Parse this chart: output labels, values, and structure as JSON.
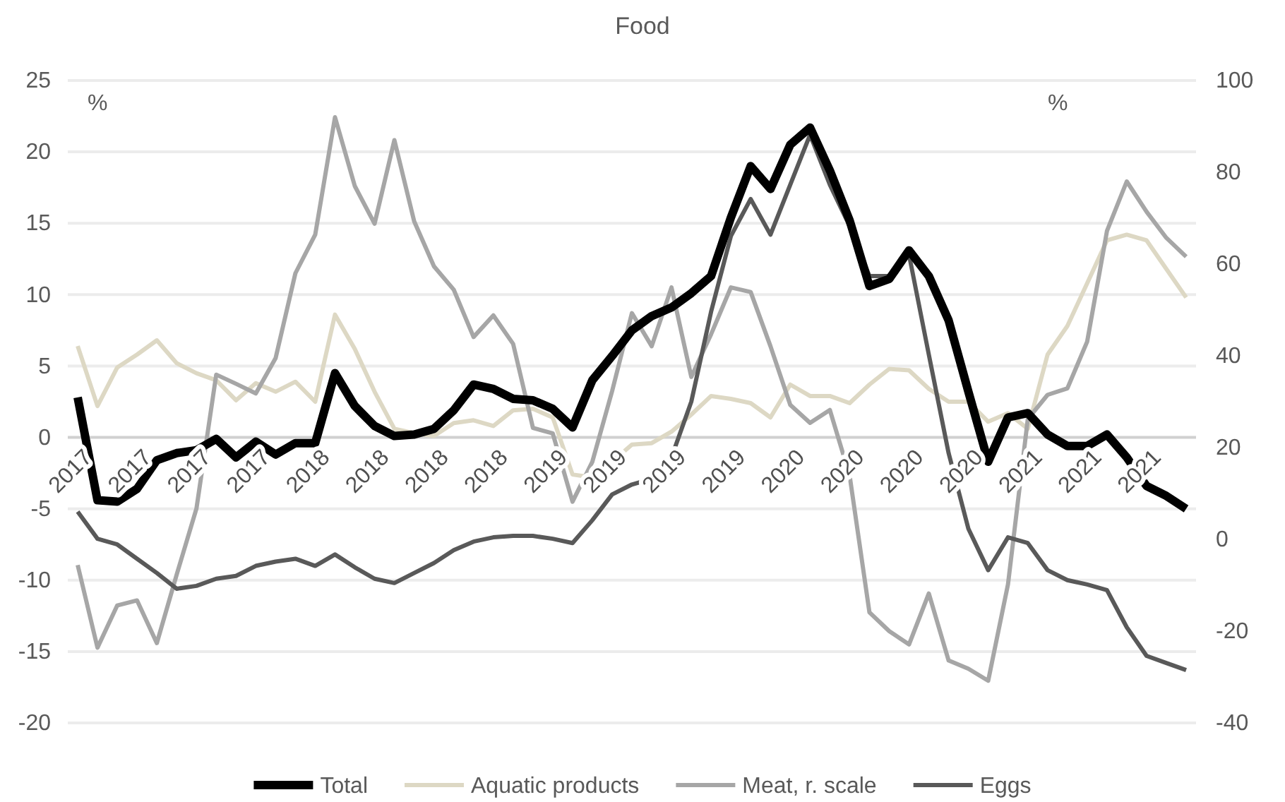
{
  "chart_data": {
    "type": "line",
    "title": "Food",
    "ylabel": "%",
    "y2label": "%",
    "categories": [
      "2017",
      null,
      null,
      "2017",
      null,
      null,
      "2017",
      null,
      null,
      "2017",
      null,
      null,
      "2018",
      null,
      null,
      "2018",
      null,
      null,
      "2018",
      null,
      null,
      "2018",
      null,
      null,
      "2019",
      null,
      null,
      "2019",
      null,
      null,
      "2019",
      null,
      null,
      "2019",
      null,
      null,
      "2020",
      null,
      null,
      "2020",
      null,
      null,
      "2020",
      null,
      null,
      "2020",
      null,
      null,
      "2021",
      null,
      null,
      "2021",
      null,
      null,
      "2021",
      null,
      null
    ],
    "series": [
      {
        "name": "Total",
        "color": "#000000",
        "values": [
          2.8,
          -4.4,
          -4.5,
          -3.6,
          -1.6,
          -1.1,
          -0.9,
          -0.1,
          -1.4,
          -0.3,
          -1.2,
          -0.4,
          -0.4,
          4.5,
          2.2,
          0.8,
          0.1,
          0.2,
          0.6,
          1.9,
          3.7,
          3.4,
          2.7,
          2.6,
          2.0,
          0.7,
          4.0,
          5.7,
          7.5,
          8.5,
          9.1,
          10.1,
          11.3,
          15.4,
          19.0,
          17.4,
          20.5,
          21.7,
          18.7,
          15.2,
          10.6,
          11.1,
          13.1,
          11.3,
          8.2,
          3.2,
          -1.7,
          1.4,
          1.7,
          0.2,
          -0.6,
          -0.6,
          0.2,
          -1.4,
          -3.4,
          -4.1,
          -5.0
        ]
      },
      {
        "name": "Aquatic products",
        "color": "#ddd8c4",
        "values": [
          6.4,
          2.2,
          4.9,
          5.8,
          6.8,
          5.2,
          4.5,
          4.0,
          2.6,
          3.8,
          3.2,
          3.9,
          2.5,
          8.6,
          6.2,
          3.2,
          0.6,
          0.3,
          0.1,
          1.0,
          1.2,
          0.8,
          1.9,
          2.0,
          1.4,
          -2.6,
          -2.8,
          -1.7,
          -0.5,
          -0.4,
          0.4,
          1.6,
          2.9,
          2.7,
          2.4,
          1.4,
          3.7,
          2.9,
          2.9,
          2.4,
          3.7,
          4.8,
          4.7,
          3.4,
          2.5,
          2.5,
          1.1,
          1.7,
          0.6,
          5.8,
          7.8,
          10.8,
          13.8,
          14.2,
          13.8,
          11.8,
          9.8
        ]
      },
      {
        "name": "Meat, r. scale",
        "color": "#a6a6a6",
        "axis": "y2",
        "values": [
          -5.6,
          -23.6,
          -14.4,
          -13.3,
          -22.6,
          -7.7,
          6.7,
          35.9,
          33.9,
          31.8,
          39.5,
          58,
          66.4,
          92,
          77,
          68.8,
          87,
          69.3,
          59.5,
          54.4,
          44.1,
          48.8,
          42.6,
          24.3,
          23.1,
          8.2,
          16.9,
          32.3,
          49.3,
          42.1,
          54.9,
          35.4,
          44.7,
          54.9,
          53.9,
          42.1,
          29.3,
          25.4,
          28.2,
          13.9,
          -15.9,
          -20,
          -22.9,
          -11.8,
          -26.4,
          -28.2,
          -30.8,
          -9.8,
          26.2,
          31.5,
          32.9,
          43.1,
          67.2,
          78,
          71.4,
          65.7,
          61.6
        ]
      },
      {
        "name": "Eggs",
        "color": "#595959",
        "values": [
          -5.2,
          -7.1,
          -7.5,
          -8.5,
          -9.5,
          -10.6,
          -10.4,
          -9.9,
          -9.7,
          -9.0,
          -8.7,
          -8.5,
          -9.0,
          -8.2,
          -9.1,
          -9.9,
          -10.2,
          -9.5,
          -8.8,
          -7.9,
          -7.3,
          -7.0,
          -6.9,
          -6.9,
          -7.1,
          -7.4,
          -5.8,
          -4.0,
          -3.3,
          -2.9,
          -1.4,
          2.5,
          8.8,
          14.1,
          16.7,
          14.2,
          17.7,
          21.2,
          17.7,
          14.8,
          11.3,
          11.3,
          12.8,
          5.8,
          -1.1,
          -6.4,
          -9.3,
          -7.0,
          -7.4,
          -9.3,
          -10.0,
          -10.3,
          -10.7,
          -13.3,
          -15.3,
          -15.8,
          -16.3
        ]
      }
    ],
    "ylim": [
      -20,
      25
    ],
    "yticks": [
      -20,
      -15,
      -10,
      -5,
      0,
      5,
      10,
      15,
      20,
      25
    ],
    "y2lim": [
      -40,
      100
    ],
    "y2ticks": [
      -40,
      -20,
      0,
      20,
      40,
      60,
      80,
      100
    ],
    "grid": "y",
    "legend": "bottom",
    "marker": "none",
    "line_style": "solid"
  }
}
